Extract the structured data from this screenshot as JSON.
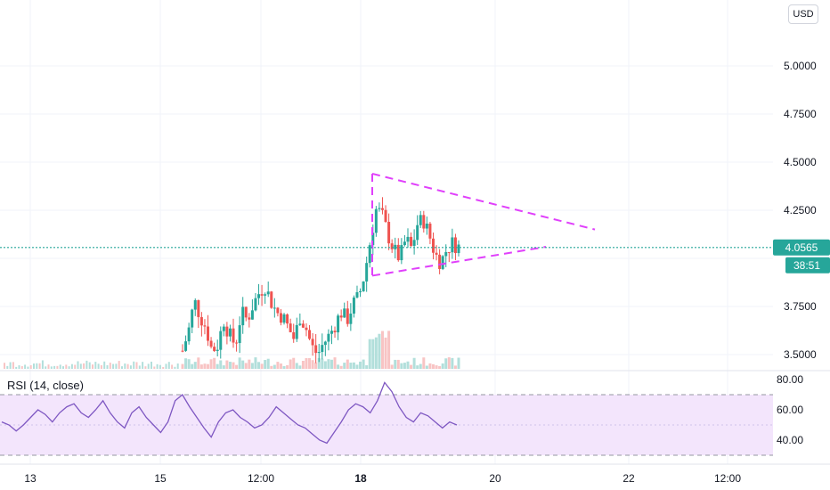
{
  "currency_button": "USD",
  "colors": {
    "up": "#26a69a",
    "down": "#ef5350",
    "price_line": "#26a69a",
    "triangle": "#e040fb",
    "rsi_line": "#7e57c2",
    "rsi_band": "#f3e5fc",
    "grid": "#f0f3fa"
  },
  "price_scale": {
    "ticks": [
      "5.0000",
      "4.7500",
      "4.5000",
      "4.2500",
      "3.7500",
      "3.5000"
    ],
    "last_price": "4.0565",
    "countdown": "38:51"
  },
  "rsi": {
    "title": "RSI (14, close)",
    "ticks": [
      "80.00",
      "60.00",
      "40.00"
    ]
  },
  "time_axis": {
    "labels": [
      "13",
      "15",
      "12:00",
      "18",
      "20",
      "22",
      "12:00"
    ]
  },
  "chart_data": {
    "type": "candlestick",
    "price_axis_range": [
      3.45,
      5.2
    ],
    "last_price": 4.0565,
    "triangle": {
      "upper": [
        [
          0.0,
          4.44
        ],
        [
          1.0,
          4.15
        ]
      ],
      "lower": [
        [
          0.0,
          3.91
        ],
        [
          0.78,
          4.06
        ]
      ]
    },
    "close_path": [
      [
        0,
        3.52
      ],
      [
        0.02,
        3.62
      ],
      [
        0.04,
        3.78
      ],
      [
        0.06,
        3.7
      ],
      [
        0.08,
        3.64
      ],
      [
        0.1,
        3.52
      ],
      [
        0.12,
        3.55
      ],
      [
        0.14,
        3.68
      ],
      [
        0.16,
        3.6
      ],
      [
        0.18,
        3.55
      ],
      [
        0.2,
        3.72
      ],
      [
        0.22,
        3.68
      ],
      [
        0.24,
        3.76
      ],
      [
        0.26,
        3.82
      ],
      [
        0.28,
        3.86
      ],
      [
        0.3,
        3.78
      ],
      [
        0.32,
        3.72
      ],
      [
        0.34,
        3.7
      ],
      [
        0.36,
        3.64
      ],
      [
        0.38,
        3.58
      ],
      [
        0.4,
        3.7
      ],
      [
        0.42,
        3.64
      ],
      [
        0.44,
        3.54
      ],
      [
        0.46,
        3.5
      ],
      [
        0.48,
        3.56
      ],
      [
        0.5,
        3.6
      ],
      [
        0.52,
        3.66
      ],
      [
        0.54,
        3.72
      ],
      [
        0.56,
        3.68
      ],
      [
        0.58,
        3.76
      ],
      [
        0.6,
        3.8
      ],
      [
        0.62,
        3.92
      ],
      [
        0.64,
        4.1
      ],
      [
        0.66,
        4.26
      ],
      [
        0.68,
        4.22
      ],
      [
        0.7,
        4.12
      ],
      [
        0.72,
        4.04
      ],
      [
        0.74,
        4.0
      ],
      [
        0.76,
        4.1
      ],
      [
        0.78,
        4.05
      ],
      [
        0.8,
        4.18
      ],
      [
        0.82,
        4.2
      ],
      [
        0.84,
        4.12
      ],
      [
        0.86,
        4.02
      ],
      [
        0.88,
        3.98
      ],
      [
        0.9,
        4.05
      ],
      [
        0.92,
        4.08
      ],
      [
        0.94,
        4.06
      ]
    ],
    "rsi_axis_range": [
      28,
      87
    ],
    "rsi_band": [
      30,
      70
    ],
    "rsi_values": [
      52,
      50,
      46,
      50,
      55,
      60,
      57,
      52,
      58,
      62,
      64,
      58,
      55,
      60,
      66,
      58,
      52,
      48,
      58,
      62,
      55,
      50,
      45,
      52,
      66,
      70,
      62,
      55,
      48,
      42,
      52,
      58,
      60,
      55,
      52,
      48,
      50,
      55,
      62,
      58,
      54,
      50,
      48,
      44,
      40,
      38,
      45,
      52,
      60,
      64,
      62,
      58,
      66,
      78,
      72,
      62,
      55,
      52,
      58,
      56,
      52,
      48,
      52,
      50
    ]
  }
}
